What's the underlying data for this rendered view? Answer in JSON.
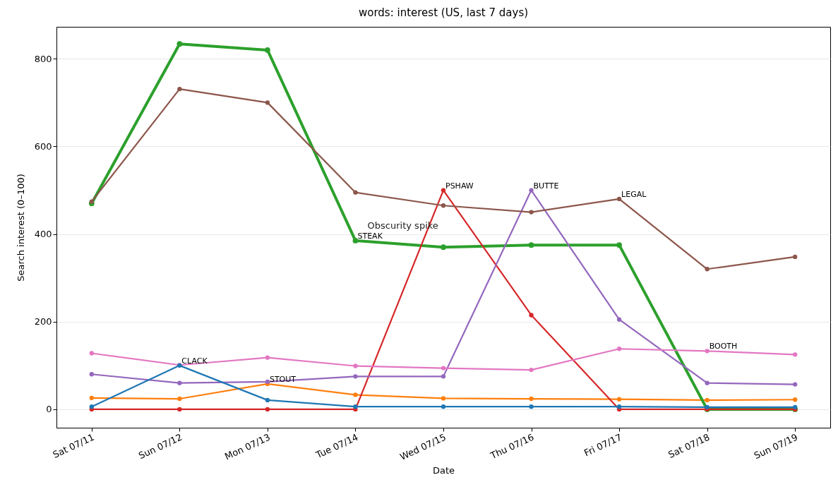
{
  "chart_data": {
    "type": "line",
    "title": "words: interest (US, last 7 days)",
    "xlabel": "Date",
    "ylabel": "Search interest (0–100)",
    "categories": [
      "Sat 07/11",
      "Sun 07/12",
      "Mon 07/13",
      "Tue 07/14",
      "Wed 07/15",
      "Thu 07/16",
      "Fri 07/17",
      "Sat 07/18",
      "Sun 07/19"
    ],
    "series": [
      {
        "color": "#1f77b4",
        "values": [
          6,
          100,
          21,
          6,
          6,
          6,
          6,
          5,
          5
        ]
      },
      {
        "color": "#ff7f0e",
        "values": [
          26,
          24,
          58,
          33,
          25,
          24,
          23,
          21,
          22
        ]
      },
      {
        "color": "#2ca02c",
        "values": [
          470,
          834,
          820,
          385,
          370,
          375,
          375,
          0,
          0
        ]
      },
      {
        "color": "#d62728",
        "values": [
          0,
          0,
          0,
          0,
          500,
          215,
          0,
          0,
          0
        ]
      },
      {
        "color": "#9467bd",
        "values": [
          80,
          60,
          63,
          75,
          75,
          500,
          205,
          60,
          57
        ]
      },
      {
        "color": "#8c564b",
        "values": [
          474,
          731,
          700,
          495,
          465,
          450,
          480,
          320,
          348
        ]
      },
      {
        "color": "#e377c2",
        "values": [
          128,
          101,
          118,
          99,
          94,
          90,
          138,
          133,
          125
        ]
      }
    ],
    "ylim": [
      -42,
      873
    ],
    "yticks": [
      0,
      200,
      400,
      600,
      800
    ],
    "grid": "y",
    "marker": "circle",
    "line_style": "solid",
    "annotations": [
      {
        "text": "CLACK",
        "x": "Sun 07/12",
        "y": 100
      },
      {
        "text": "STOUT",
        "x": "Mon 07/13",
        "y": 58
      },
      {
        "text": "STEAK",
        "x": "Tue 07/14",
        "y": 385
      },
      {
        "text": "PSHAW",
        "x": "Wed 07/15",
        "y": 500
      },
      {
        "text": "BUTTE",
        "x": "Thu 07/16",
        "y": 500
      },
      {
        "text": "LEGAL",
        "x": "Fri 07/17",
        "y": 480
      },
      {
        "text": "BOOTH",
        "x": "Sat 07/18",
        "y": 133
      },
      "Obscurity spike"
    ]
  }
}
